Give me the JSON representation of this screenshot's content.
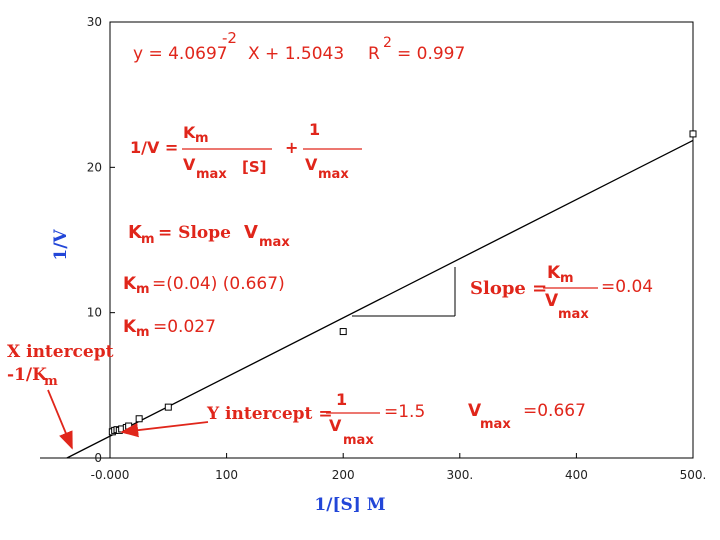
{
  "chart_data": {
    "type": "scatter",
    "title": "",
    "xlabel": "1/[S] M",
    "ylabel": "1/V",
    "xlim": [
      -50,
      500
    ],
    "ylim": [
      0,
      30
    ],
    "x_ticks": [
      0,
      100,
      200,
      300,
      400,
      500
    ],
    "x_tick_labels": [
      "-0.000",
      "100",
      "200",
      "300.",
      "400",
      "500."
    ],
    "y_ticks": [
      0,
      10,
      20,
      30
    ],
    "y_tick_labels": [
      "0",
      "10",
      "20",
      "30"
    ],
    "grid": false,
    "series": [
      {
        "points": [
          {
            "x": 2,
            "y": 1.8
          },
          {
            "x": 4,
            "y": 1.9
          },
          {
            "x": 6,
            "y": 1.95
          },
          {
            "x": 8,
            "y": 1.9
          },
          {
            "x": 10,
            "y": 2.0
          },
          {
            "x": 14,
            "y": 2.1
          },
          {
            "x": 16,
            "y": 2.2
          },
          {
            "x": 25,
            "y": 2.7
          },
          {
            "x": 50,
            "y": 3.5
          },
          {
            "x": 200,
            "y": 8.7
          },
          {
            "x": 500,
            "y": 22.3
          }
        ]
      }
    ],
    "fit_line": {
      "slope": 0.040697,
      "intercept": 1.5043
    },
    "annotations": {
      "equation_prefix": "y = 4.0697",
      "equation_exp": "-2",
      "equation_suffix": "X + 1.5043",
      "r2_prefix": "R",
      "r2_exp": "2",
      "r2_suffix": "= 0.997",
      "mm_lhs": "1/V =",
      "mm_km": "K",
      "mm_km_sub": "m",
      "mm_vmax": "V",
      "mm_vmax_sub": "max",
      "mm_s": "[S]",
      "mm_plus": "+",
      "mm_one": "1",
      "km_eq_km": "K",
      "km_eq_sub": "m",
      "km_eq_rhs": "= Slope",
      "km_eq_v": "V",
      "km_eq_vsub": "max",
      "km_calc_eq": "=(0.04) (0.667)",
      "km_result_eq": "=0.027",
      "slope_label": "Slope =",
      "slope_num": "K",
      "slope_num_sub": "m",
      "slope_den": "V",
      "slope_den_sub": "max",
      "slope_value": "=0.04",
      "y_int_label": "Y intercept =",
      "y_int_num": "1",
      "y_int_den": "V",
      "y_int_den_sub": "max",
      "y_int_value": "=1.5",
      "vmax_label": "V",
      "vmax_sub": "max",
      "vmax_value": "=0.667",
      "x_int_line1": "X intercept",
      "x_int_line2": "-1/K",
      "x_int_sub": "m"
    },
    "colors": {
      "annotation": "#e0261b",
      "axis_label": "#2246d8",
      "data": "#000000"
    }
  }
}
